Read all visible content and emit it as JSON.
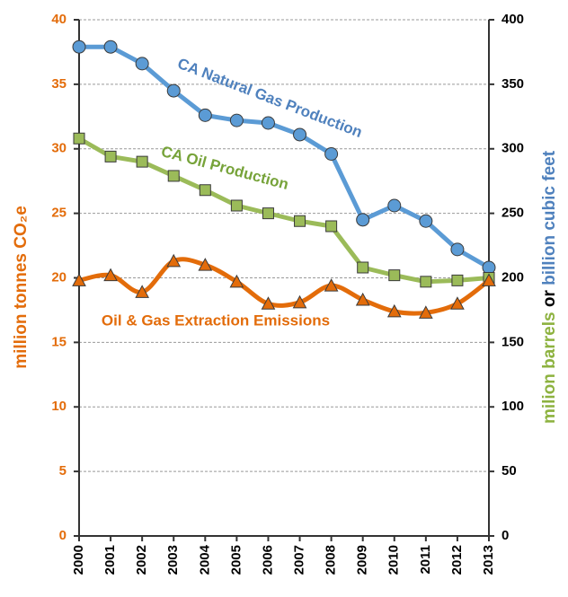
{
  "chart_data": {
    "type": "line",
    "ylabel": "million tonnes CO₂e",
    "y2label": [
      "milion barrels",
      "or",
      "billion cubic feet"
    ],
    "categories": [
      "2000",
      "2001",
      "2002",
      "2003",
      "2004",
      "2005",
      "2006",
      "2007",
      "2008",
      "2009",
      "2010",
      "2011",
      "2012",
      "2013"
    ],
    "ylim": [
      0,
      40
    ],
    "yticks": [
      0,
      5,
      10,
      15,
      20,
      25,
      30,
      35,
      40
    ],
    "y2lim": [
      0,
      400
    ],
    "y2ticks": [
      0,
      50,
      100,
      150,
      200,
      250,
      300,
      350,
      400
    ],
    "grid": true,
    "series": [
      {
        "name": "CA Natural Gas Production",
        "color": "#5b9bd5",
        "marker": "circle",
        "axis": "y2",
        "values": [
          379,
          379,
          366,
          345,
          326,
          322,
          320,
          311,
          296,
          245,
          256,
          244,
          222,
          208
        ]
      },
      {
        "name": "CA Oil Production",
        "color": "#9bbb59",
        "marker": "square",
        "axis": "y2",
        "values": [
          308,
          294,
          290,
          279,
          268,
          256,
          250,
          244,
          240,
          208,
          202,
          197,
          198,
          200
        ]
      },
      {
        "name": "Oil & Gas Extraction Emissions",
        "color": "#e36c0a",
        "marker": "triangle",
        "axis": "y",
        "smooth": true,
        "values": [
          19.8,
          20.2,
          18.9,
          21.3,
          21.0,
          19.7,
          18.0,
          18.1,
          19.4,
          18.3,
          17.4,
          17.3,
          18.0,
          19.8
        ]
      }
    ]
  }
}
